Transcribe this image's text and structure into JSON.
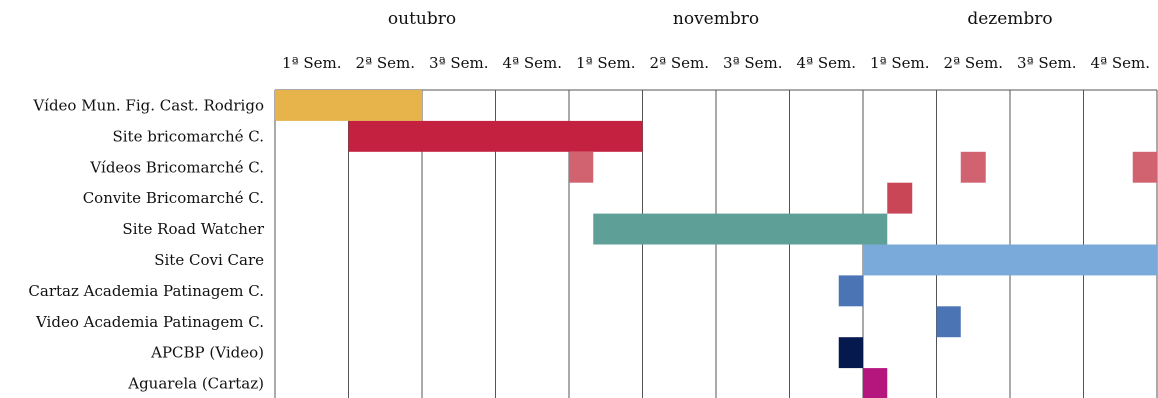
{
  "chart_data": {
    "type": "gantt",
    "months": [
      "outubro",
      "novembro",
      "dezembro"
    ],
    "weeks": [
      "1ª Sem.",
      "2ª Sem.",
      "3ª Sem.",
      "4ª Sem.",
      "1ª Sem.",
      "2ª Sem.",
      "3ª Sem.",
      "4ª Sem.",
      "1ª Sem.",
      "2ª Sem.",
      "3ª Sem.",
      "4ª Sem."
    ],
    "tasks": [
      "Vídeo Mun. Fig. Cast. Rodrigo",
      "Site bricomarché C.",
      "Vídeos Bricomarché C.",
      "Convite Bricomarché C.",
      "Site Road Watcher",
      "Site Covi Care",
      "Cartaz Academia Patinagem C.",
      "Video Academia Patinagem C.",
      "APCBP (Video)",
      "Aguarela (Cartaz)"
    ],
    "bars": [
      {
        "task": 0,
        "start_week": 0,
        "end_week": 2,
        "color": "#E6B44A"
      },
      {
        "task": 1,
        "start_week": 1,
        "end_week": 5,
        "color": "#C4203F"
      },
      {
        "task": 2,
        "start_week": 4,
        "end_week": 4.33,
        "color": "#D0636F"
      },
      {
        "task": 2,
        "start_week": 9.33,
        "end_week": 9.67,
        "color": "#D0636F"
      },
      {
        "task": 2,
        "start_week": 11.67,
        "end_week": 12,
        "color": "#D0636F"
      },
      {
        "task": 3,
        "start_week": 8.33,
        "end_week": 8.67,
        "color": "#C94656"
      },
      {
        "task": 4,
        "start_week": 4.33,
        "end_week": 8.33,
        "color": "#5E9F98"
      },
      {
        "task": 5,
        "start_week": 8,
        "end_week": 12,
        "color": "#79AAD9"
      },
      {
        "task": 6,
        "start_week": 7.67,
        "end_week": 8,
        "color": "#4A74B4"
      },
      {
        "task": 7,
        "start_week": 9,
        "end_week": 9.33,
        "color": "#4A74B4"
      },
      {
        "task": 8,
        "start_week": 7.67,
        "end_week": 8,
        "color": "#06194F"
      },
      {
        "task": 9,
        "start_week": 8,
        "end_week": 8.33,
        "color": "#B5167D"
      }
    ]
  }
}
